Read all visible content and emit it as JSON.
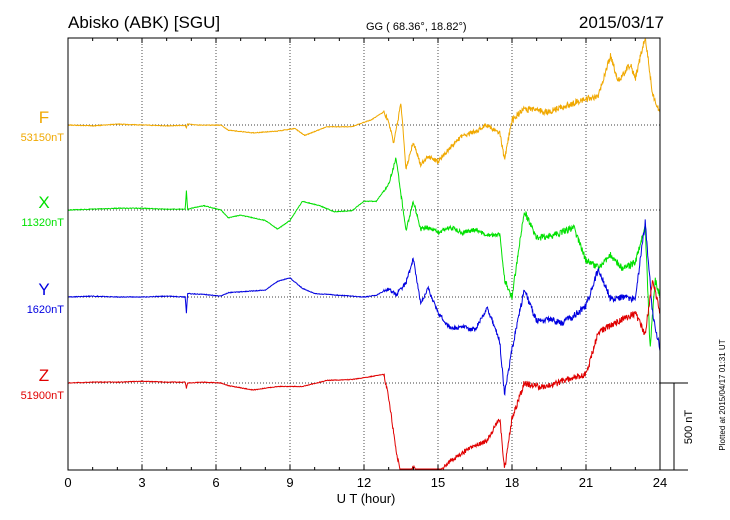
{
  "header": {
    "station": "Abisko (ABK)  [SGU]",
    "coords": "GG ( 68.36°,  18.82°)",
    "date": "2015/03/17"
  },
  "side_label": "Plotted at 2015/04/17 01:31  UT",
  "scale_label": "500 nT",
  "chart_data": {
    "type": "line",
    "xlabel": "U T (hour)",
    "xlim": [
      0,
      24
    ],
    "xticks": [
      0,
      3,
      6,
      9,
      12,
      15,
      18,
      21,
      24
    ],
    "scale_nT": 500,
    "grid": true,
    "series": [
      {
        "name": "F",
        "baseline_label": "53150nT",
        "color": "#f0a800",
        "points": [
          [
            0,
            0
          ],
          [
            1,
            -5
          ],
          [
            2,
            5
          ],
          [
            3,
            0
          ],
          [
            4,
            -5
          ],
          [
            4.75,
            -2
          ],
          [
            4.8,
            -15
          ],
          [
            4.85,
            5
          ],
          [
            5.5,
            -2
          ],
          [
            6.2,
            0
          ],
          [
            6.5,
            -30
          ],
          [
            7.5,
            -45
          ],
          [
            8.5,
            -35
          ],
          [
            9.2,
            -20
          ],
          [
            9.6,
            -60
          ],
          [
            10.5,
            -10
          ],
          [
            11.5,
            -10
          ],
          [
            12.3,
            30
          ],
          [
            12.8,
            75
          ],
          [
            13.0,
            20
          ],
          [
            13.2,
            -100
          ],
          [
            13.5,
            120
          ],
          [
            13.7,
            -250
          ],
          [
            14.0,
            -100
          ],
          [
            14.3,
            -230
          ],
          [
            14.6,
            -180
          ],
          [
            15.0,
            -210
          ],
          [
            15.5,
            -130
          ],
          [
            16.0,
            -60
          ],
          [
            16.5,
            -40
          ],
          [
            17.0,
            0
          ],
          [
            17.5,
            -50
          ],
          [
            17.7,
            -200
          ],
          [
            18.0,
            30
          ],
          [
            18.5,
            95
          ],
          [
            19.0,
            80
          ],
          [
            19.5,
            75
          ],
          [
            20.2,
            110
          ],
          [
            21.0,
            150
          ],
          [
            21.5,
            170
          ],
          [
            22.0,
            400
          ],
          [
            22.3,
            250
          ],
          [
            22.8,
            350
          ],
          [
            23.0,
            270
          ],
          [
            23.4,
            510
          ],
          [
            23.7,
            180
          ],
          [
            24,
            60
          ]
        ]
      },
      {
        "name": "X",
        "baseline_label": "11320nT",
        "color": "#00e000",
        "points": [
          [
            0,
            0
          ],
          [
            1,
            5
          ],
          [
            2,
            10
          ],
          [
            3,
            10
          ],
          [
            4,
            5
          ],
          [
            4.75,
            5
          ],
          [
            4.8,
            110
          ],
          [
            4.85,
            5
          ],
          [
            5.5,
            25
          ],
          [
            6.2,
            0
          ],
          [
            6.5,
            -45
          ],
          [
            7.0,
            -30
          ],
          [
            8.0,
            -60
          ],
          [
            8.5,
            -110
          ],
          [
            9.0,
            -60
          ],
          [
            9.5,
            50
          ],
          [
            10.2,
            25
          ],
          [
            10.8,
            -10
          ],
          [
            11.5,
            -5
          ],
          [
            12.0,
            50
          ],
          [
            12.5,
            50
          ],
          [
            13.0,
            150
          ],
          [
            13.3,
            300
          ],
          [
            13.7,
            -120
          ],
          [
            14.0,
            50
          ],
          [
            14.3,
            -110
          ],
          [
            14.6,
            -100
          ],
          [
            15.0,
            -130
          ],
          [
            15.5,
            -100
          ],
          [
            16.0,
            -130
          ],
          [
            16.5,
            -110
          ],
          [
            17.0,
            -150
          ],
          [
            17.5,
            -140
          ],
          [
            17.7,
            -400
          ],
          [
            18.0,
            -500
          ],
          [
            18.3,
            -200
          ],
          [
            18.5,
            -10
          ],
          [
            19.0,
            -160
          ],
          [
            19.5,
            -150
          ],
          [
            20.0,
            -130
          ],
          [
            20.5,
            -100
          ],
          [
            21.0,
            -290
          ],
          [
            21.5,
            -330
          ],
          [
            22.0,
            -260
          ],
          [
            22.5,
            -340
          ],
          [
            23.0,
            -300
          ],
          [
            23.4,
            -90
          ],
          [
            23.6,
            -800
          ],
          [
            23.8,
            -400
          ],
          [
            24,
            -500
          ]
        ]
      },
      {
        "name": "Y",
        "baseline_label": "1620nT",
        "color": "#0000e0",
        "points": [
          [
            0,
            0
          ],
          [
            1,
            5
          ],
          [
            2,
            0
          ],
          [
            3,
            0
          ],
          [
            4,
            5
          ],
          [
            4.75,
            0
          ],
          [
            4.8,
            -95
          ],
          [
            4.85,
            20
          ],
          [
            5.5,
            15
          ],
          [
            6.2,
            5
          ],
          [
            6.5,
            25
          ],
          [
            7.5,
            35
          ],
          [
            8.0,
            40
          ],
          [
            8.5,
            90
          ],
          [
            9.0,
            110
          ],
          [
            9.5,
            50
          ],
          [
            10.0,
            20
          ],
          [
            11.0,
            10
          ],
          [
            12.0,
            0
          ],
          [
            12.5,
            10
          ],
          [
            13.0,
            50
          ],
          [
            13.3,
            10
          ],
          [
            13.7,
            80
          ],
          [
            14.0,
            220
          ],
          [
            14.3,
            -40
          ],
          [
            14.6,
            50
          ],
          [
            15.0,
            -90
          ],
          [
            15.5,
            -180
          ],
          [
            16.0,
            -170
          ],
          [
            16.5,
            -190
          ],
          [
            17.0,
            -60
          ],
          [
            17.5,
            -250
          ],
          [
            17.7,
            -560
          ],
          [
            18.0,
            -300
          ],
          [
            18.5,
            40
          ],
          [
            19.0,
            -140
          ],
          [
            19.5,
            -130
          ],
          [
            20.0,
            -150
          ],
          [
            20.5,
            -110
          ],
          [
            21.0,
            -50
          ],
          [
            21.5,
            160
          ],
          [
            22.0,
            -10
          ],
          [
            22.5,
            0
          ],
          [
            23.0,
            -10
          ],
          [
            23.4,
            430
          ],
          [
            23.7,
            -100
          ],
          [
            24,
            -300
          ]
        ]
      },
      {
        "name": "Z",
        "baseline_label": "51900nT",
        "color": "#e00000",
        "points": [
          [
            0,
            0
          ],
          [
            1,
            5
          ],
          [
            2,
            5
          ],
          [
            3,
            10
          ],
          [
            4,
            5
          ],
          [
            4.75,
            5
          ],
          [
            4.8,
            -30
          ],
          [
            4.85,
            0
          ],
          [
            5.5,
            5
          ],
          [
            6.2,
            0
          ],
          [
            6.5,
            -15
          ],
          [
            7.5,
            -40
          ],
          [
            8.5,
            -20
          ],
          [
            9.5,
            -20
          ],
          [
            10.5,
            15
          ],
          [
            11.5,
            20
          ],
          [
            12.0,
            30
          ],
          [
            12.8,
            50
          ],
          [
            13.0,
            -80
          ],
          [
            13.3,
            -390
          ],
          [
            13.6,
            -600
          ],
          [
            14.0,
            -480
          ],
          [
            14.5,
            -560
          ],
          [
            15.0,
            -520
          ],
          [
            15.5,
            -450
          ],
          [
            16.0,
            -400
          ],
          [
            16.5,
            -360
          ],
          [
            17.0,
            -330
          ],
          [
            17.5,
            -200
          ],
          [
            17.7,
            -500
          ],
          [
            18.0,
            -200
          ],
          [
            18.5,
            0
          ],
          [
            19.0,
            -20
          ],
          [
            19.5,
            -20
          ],
          [
            20.0,
            10
          ],
          [
            20.5,
            30
          ],
          [
            21.0,
            50
          ],
          [
            21.5,
            290
          ],
          [
            22.0,
            330
          ],
          [
            22.5,
            370
          ],
          [
            23.0,
            400
          ],
          [
            23.4,
            280
          ],
          [
            23.7,
            600
          ],
          [
            24,
            400
          ]
        ]
      }
    ]
  }
}
